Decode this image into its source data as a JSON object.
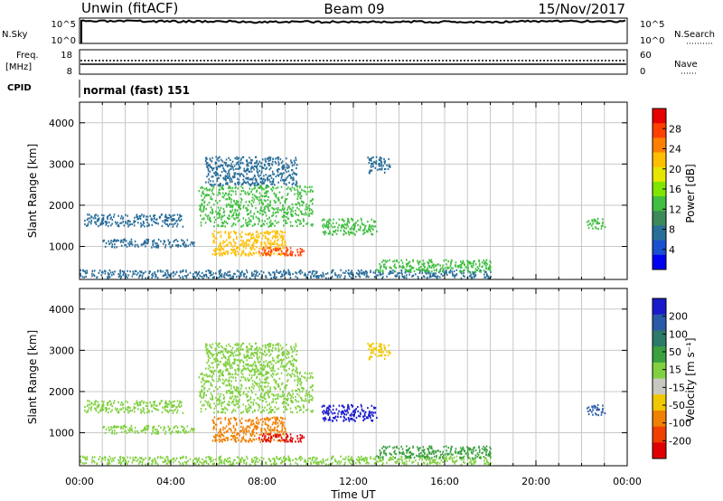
{
  "header": {
    "title": "Unwin (fitACF)",
    "beam": "Beam 09",
    "date": "15/Nov/2017"
  },
  "status_panels": {
    "nsky_label": "N.Sky",
    "nsearch_label": "N.Search",
    "nsky_ticks": [
      "10^5",
      "10^0"
    ],
    "nsearch_ticks": [
      "10^5",
      "10^0"
    ],
    "freq_label": "Freq.",
    "freq_unit": "[MHz]",
    "freq_ticks": [
      "18",
      "8"
    ],
    "nave_label": "Nave",
    "nave_ticks": [
      "60",
      "0"
    ],
    "cpid_label": "CPID",
    "cpid_value": "normal (fast) 151"
  },
  "time_axis": {
    "label": "Time UT",
    "ticks": [
      "00:00",
      "04:00",
      "08:00",
      "12:00",
      "16:00",
      "20:00",
      "00:00"
    ]
  },
  "power_colorbar": {
    "label": "Power [dB]",
    "ticks": [
      "28",
      "24",
      "20",
      "16",
      "12",
      "8",
      "4"
    ],
    "colors": [
      "#e60000",
      "#ff4000",
      "#ff8000",
      "#ffbf00",
      "#e6e600",
      "#80e600",
      "#40bf40",
      "#3a8a5a",
      "#2a6e9a",
      "#1a4fd0",
      "#0000f0"
    ]
  },
  "velocity_colorbar": {
    "label": "Velocity [m s⁻¹]",
    "ticks": [
      "200",
      "100",
      "50",
      "15",
      "-15",
      "-50",
      "-100",
      "-200"
    ],
    "colors": [
      "#1a1acd",
      "#2a5aa8",
      "#2e7a6a",
      "#3aa040",
      "#80d040",
      "#c8c8c0",
      "#f0c800",
      "#f08000",
      "#f04000",
      "#e00000"
    ]
  },
  "chart_data": [
    {
      "type": "heatmap",
      "title": "Power",
      "xlabel": "Time UT",
      "ylabel": "Slant Range [km]",
      "xlim": [
        0,
        24
      ],
      "ylim": [
        200,
        4500
      ],
      "y_ticks": [
        1000,
        2000,
        3000,
        4000
      ],
      "colorbar_label": "Power [dB]",
      "colorbar_range": [
        0,
        32
      ],
      "grid": true,
      "regions": [
        {
          "t0": 0.0,
          "t1": 18.0,
          "r0": 250,
          "r1": 450,
          "value": 8
        },
        {
          "t0": 0.2,
          "t1": 4.5,
          "r0": 1500,
          "r1": 1800,
          "value": 6
        },
        {
          "t0": 1.0,
          "t1": 5.0,
          "r0": 1000,
          "r1": 1200,
          "value": 6
        },
        {
          "t0": 5.2,
          "t1": 10.2,
          "r0": 1500,
          "r1": 2500,
          "value": 14
        },
        {
          "t0": 5.8,
          "t1": 9.0,
          "r0": 800,
          "r1": 1400,
          "value": 22
        },
        {
          "t0": 7.8,
          "t1": 9.8,
          "r0": 800,
          "r1": 1000,
          "value": 28
        },
        {
          "t0": 5.5,
          "t1": 9.5,
          "r0": 2500,
          "r1": 3200,
          "value": 8
        },
        {
          "t0": 10.6,
          "t1": 13.0,
          "r0": 1300,
          "r1": 1700,
          "value": 12
        },
        {
          "t0": 12.6,
          "t1": 13.6,
          "r0": 2800,
          "r1": 3200,
          "value": 6
        },
        {
          "t0": 13.0,
          "t1": 18.0,
          "r0": 400,
          "r1": 700,
          "value": 12
        },
        {
          "t0": 22.2,
          "t1": 23.0,
          "r0": 1450,
          "r1": 1700,
          "value": 14
        }
      ]
    },
    {
      "type": "heatmap",
      "title": "Velocity",
      "xlabel": "Time UT",
      "ylabel": "Slant Range [km]",
      "xlim": [
        0,
        24
      ],
      "ylim": [
        200,
        4500
      ],
      "y_ticks": [
        1000,
        2000,
        3000,
        4000
      ],
      "colorbar_label": "Velocity [m s⁻¹]",
      "colorbar_range": [
        -250,
        250
      ],
      "grid": true,
      "regions": [
        {
          "t0": 0.0,
          "t1": 18.0,
          "r0": 250,
          "r1": 450,
          "value": 30
        },
        {
          "t0": 0.2,
          "t1": 4.5,
          "r0": 1500,
          "r1": 1800,
          "value": 0
        },
        {
          "t0": 1.0,
          "t1": 5.0,
          "r0": 1000,
          "r1": 1200,
          "value": 0
        },
        {
          "t0": 5.2,
          "t1": 10.2,
          "r0": 1500,
          "r1": 2500,
          "value": 10
        },
        {
          "t0": 5.8,
          "t1": 9.0,
          "r0": 800,
          "r1": 1400,
          "value": -150
        },
        {
          "t0": 7.8,
          "t1": 9.8,
          "r0": 800,
          "r1": 1000,
          "value": -220
        },
        {
          "t0": 5.5,
          "t1": 9.5,
          "r0": 2500,
          "r1": 3200,
          "value": 0
        },
        {
          "t0": 10.6,
          "t1": 13.0,
          "r0": 1300,
          "r1": 1700,
          "value": 200
        },
        {
          "t0": 12.6,
          "t1": 13.6,
          "r0": 2800,
          "r1": 3200,
          "value": -60
        },
        {
          "t0": 13.0,
          "t1": 18.0,
          "r0": 400,
          "r1": 700,
          "value": 60
        },
        {
          "t0": 22.2,
          "t1": 23.0,
          "r0": 1450,
          "r1": 1700,
          "value": 150
        }
      ]
    }
  ]
}
